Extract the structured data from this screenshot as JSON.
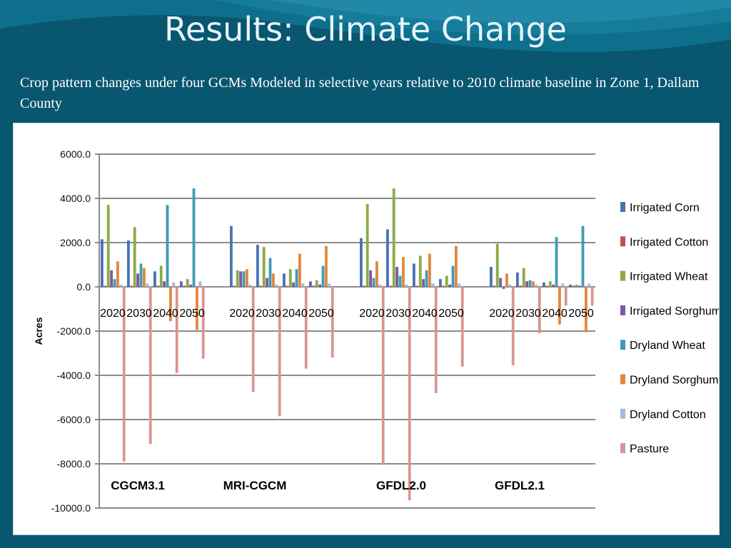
{
  "slide": {
    "title": "Results: Climate Change",
    "subtitle": "Crop pattern changes under four GCMs Modeled in selective years relative to 2010 climate baseline in Zone 1, Dallam County"
  },
  "colors": {
    "background": "#08566f",
    "title_text": "#e8f4fb"
  },
  "chart_data": {
    "type": "bar",
    "title": "",
    "xlabel": "",
    "ylabel": "Acres",
    "ylim": [
      -10000,
      6000
    ],
    "yticks": [
      6000,
      4000,
      2000,
      0,
      -2000,
      -4000,
      -6000,
      -8000,
      -10000
    ],
    "ytick_labels": [
      "6000.0",
      "4000.0",
      "2000.0",
      "0.0",
      "-2000.0",
      "-4000.0",
      "-6000.0",
      "-8000.0",
      "-10000.0"
    ],
    "grid": true,
    "legend_position": "right",
    "groups": [
      "CGCM3.1",
      "MRI-CGCM",
      "GFDL2.0",
      "GFDL2.1"
    ],
    "categories": [
      "2020",
      "2030",
      "2040",
      "2050"
    ],
    "series": [
      {
        "name": "Irrigated Corn",
        "color": "#4a72b0",
        "values": [
          [
            2150,
            2100,
            700,
            250
          ],
          [
            2750,
            1900,
            600,
            250
          ],
          [
            2200,
            2600,
            1050,
            350
          ],
          [
            900,
            650,
            200,
            100
          ]
        ]
      },
      {
        "name": "Irrigated Cotton",
        "color": "#c0504d",
        "values": [
          [
            50,
            50,
            50,
            50
          ],
          [
            50,
            50,
            50,
            50
          ],
          [
            50,
            50,
            50,
            50
          ],
          [
            50,
            50,
            50,
            50
          ]
        ]
      },
      {
        "name": "Irrigated Wheat",
        "color": "#8aab48",
        "values": [
          [
            3700,
            2700,
            950,
            350
          ],
          [
            750,
            1800,
            800,
            300
          ],
          [
            3750,
            4450,
            1400,
            500
          ],
          [
            1950,
            850,
            250,
            100
          ]
        ]
      },
      {
        "name": "Irrigated Sorghum",
        "color": "#7a5ca0",
        "values": [
          [
            750,
            600,
            250,
            100
          ],
          [
            700,
            400,
            200,
            100
          ],
          [
            750,
            900,
            350,
            100
          ],
          [
            400,
            250,
            100,
            50
          ]
        ]
      },
      {
        "name": "Dryland Wheat",
        "color": "#3f9bb4",
        "values": [
          [
            350,
            1050,
            3700,
            4450
          ],
          [
            700,
            1300,
            800,
            950
          ],
          [
            400,
            500,
            750,
            950
          ],
          [
            -100,
            300,
            2250,
            2750
          ]
        ]
      },
      {
        "name": "Dryland Sorghum",
        "color": "#e2873a",
        "values": [
          [
            1150,
            850,
            -1550,
            -1950
          ],
          [
            800,
            600,
            1500,
            1850
          ],
          [
            1150,
            1350,
            1500,
            1850
          ],
          [
            600,
            250,
            -1700,
            -2050
          ]
        ]
      },
      {
        "name": "Dryland Cotton",
        "color": "#a3b8dc",
        "values": [
          [
            100,
            150,
            200,
            250
          ],
          [
            100,
            100,
            150,
            150
          ],
          [
            100,
            100,
            150,
            150
          ],
          [
            100,
            100,
            150,
            150
          ]
        ]
      },
      {
        "name": "Pasture",
        "color": "#d99594",
        "values": [
          [
            -7900,
            -7100,
            -3900,
            -3250
          ],
          [
            -4750,
            -5850,
            -3700,
            -3200
          ],
          [
            -8050,
            -9650,
            -4800,
            -3600
          ],
          [
            -3550,
            -2100,
            -850,
            -850
          ]
        ]
      }
    ]
  }
}
